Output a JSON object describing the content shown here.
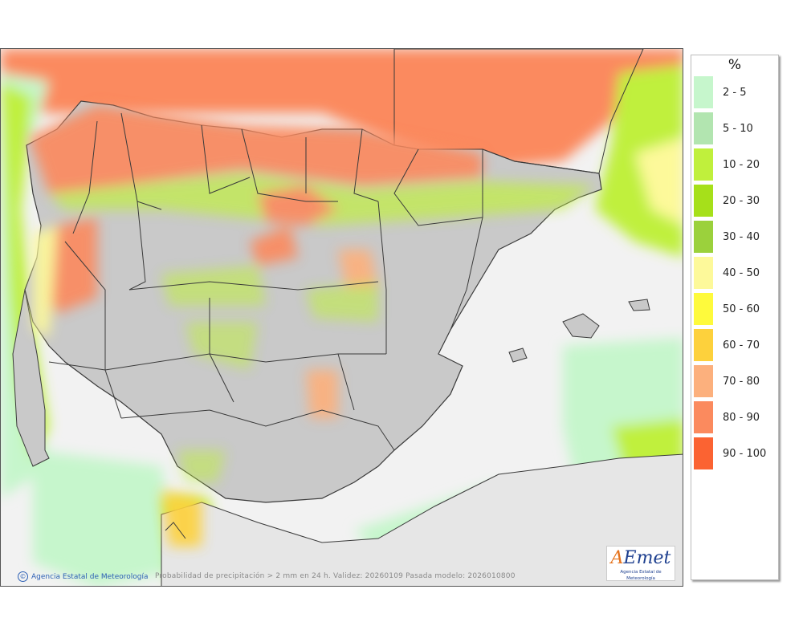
{
  "legend": {
    "unit": "%",
    "items": [
      {
        "label": "2 - 5",
        "color": "#c6f6cc"
      },
      {
        "label": "5 - 10",
        "color": "#b2e5b0"
      },
      {
        "label": "10 - 20",
        "color": "#c0f03c"
      },
      {
        "label": "20 - 30",
        "color": "#a6e01a"
      },
      {
        "label": "30 - 40",
        "color": "#9bd13c"
      },
      {
        "label": "40 - 50",
        "color": "#fdf99a"
      },
      {
        "label": "50 - 60",
        "color": "#fefa3c"
      },
      {
        "label": "60 - 70",
        "color": "#fdd13c"
      },
      {
        "label": "70 - 80",
        "color": "#fcb07d"
      },
      {
        "label": "80 - 90",
        "color": "#fb8a5e"
      },
      {
        "label": "90 - 100",
        "color": "#fb6332"
      }
    ]
  },
  "map": {
    "credit": "Agencia Estatal de Meteorología",
    "caption": "Probabilidad de precipitación > 2 mm en 24 h. Validez: 20260109 Pasada modelo: 2026010800",
    "logo": {
      "mark_a": "A",
      "mark_rest": "Emet",
      "sub": "Agencia Estatal de Meteorología"
    },
    "colors": {
      "land": "#c9c9c9",
      "sea": "#f2f2f2",
      "borders": "#3a3a3a"
    }
  }
}
